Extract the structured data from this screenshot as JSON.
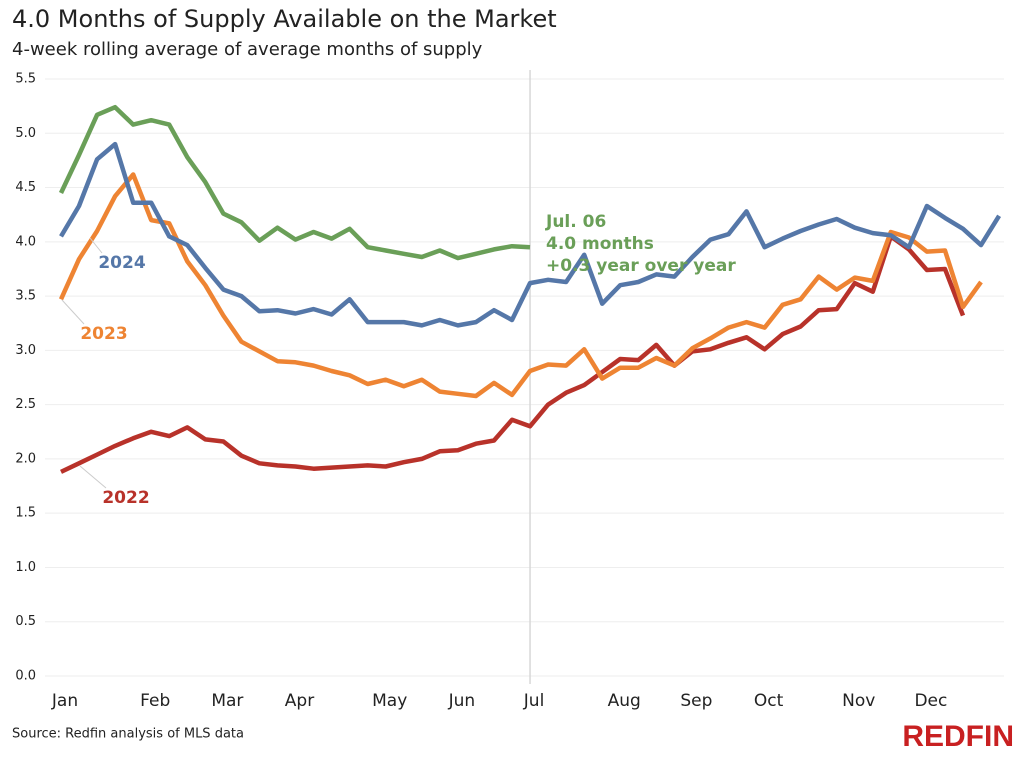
{
  "chart_data": {
    "type": "line",
    "title": "4.0 Months of Supply Available on the Market",
    "subtitle": "4-week rolling average of average months of supply",
    "source": "Source: Redfin analysis of MLS data",
    "logo": "REDFIN",
    "annotation": [
      "Jul. 06",
      "4.0 months",
      "+0.3 year over year"
    ],
    "categories": [
      "Jan",
      null,
      null,
      null,
      null,
      "Feb",
      null,
      null,
      null,
      "Mar",
      null,
      null,
      null,
      "Apr",
      null,
      null,
      null,
      null,
      "May",
      null,
      null,
      null,
      "Jun",
      null,
      null,
      null,
      "Jul",
      null,
      null,
      null,
      null,
      "Aug",
      null,
      null,
      null,
      "Sep",
      null,
      null,
      null,
      "Oct",
      null,
      null,
      null,
      null,
      "Nov",
      null,
      null,
      null,
      "Dec",
      null,
      null,
      null,
      null
    ],
    "series": [
      {
        "name": "2022",
        "color": "#b8322a",
        "values": [
          1.88,
          1.96,
          2.04,
          2.12,
          2.19,
          2.25,
          2.21,
          2.29,
          2.18,
          2.16,
          2.03,
          1.96,
          1.94,
          1.93,
          1.91,
          1.92,
          1.93,
          1.94,
          1.93,
          1.97,
          2.0,
          2.07,
          2.08,
          2.14,
          2.17,
          2.36,
          2.3,
          2.5,
          2.61,
          2.68,
          2.8,
          2.92,
          2.91,
          3.05,
          2.86,
          2.99,
          3.01,
          3.07,
          3.12,
          3.01,
          3.15,
          3.22,
          3.37,
          3.38,
          3.62,
          3.54,
          4.05,
          3.93,
          3.74,
          3.75,
          3.32,
          null,
          null
        ]
      },
      {
        "name": "2023",
        "color": "#ee8433",
        "values": [
          3.47,
          3.84,
          4.1,
          4.42,
          4.62,
          4.2,
          4.17,
          3.82,
          3.6,
          3.32,
          3.08,
          2.99,
          2.9,
          2.89,
          2.86,
          2.81,
          2.77,
          2.69,
          2.73,
          2.67,
          2.73,
          2.62,
          2.6,
          2.58,
          2.7,
          2.59,
          2.81,
          2.87,
          2.86,
          3.01,
          2.74,
          2.84,
          2.84,
          2.93,
          2.86,
          3.02,
          3.11,
          3.21,
          3.26,
          3.21,
          3.42,
          3.47,
          3.68,
          3.56,
          3.67,
          3.64,
          4.09,
          4.04,
          3.91,
          3.92,
          3.4,
          3.63,
          null
        ]
      },
      {
        "name": "2024",
        "color": "#5577a8",
        "values": [
          4.05,
          4.33,
          4.76,
          4.9,
          4.36,
          4.36,
          4.05,
          3.97,
          3.76,
          3.56,
          3.5,
          3.36,
          3.37,
          3.34,
          3.38,
          3.33,
          3.47,
          3.26,
          3.26,
          3.26,
          3.23,
          3.28,
          3.23,
          3.26,
          3.37,
          3.28,
          3.62,
          3.65,
          3.63,
          3.88,
          3.43,
          3.6,
          3.63,
          3.7,
          3.68,
          3.86,
          4.02,
          4.07,
          4.28,
          3.95,
          4.03,
          4.1,
          4.16,
          4.21,
          4.13,
          4.08,
          4.06,
          3.95,
          4.33,
          4.22,
          4.12,
          3.97,
          4.24
        ]
      },
      {
        "color": "#6a9f58",
        "values": [
          4.45,
          4.8,
          5.17,
          5.24,
          5.08,
          5.12,
          5.08,
          4.78,
          4.55,
          4.26,
          4.18,
          4.01,
          4.13,
          4.02,
          4.09,
          4.03,
          4.12,
          3.95,
          3.92,
          3.89,
          3.86,
          3.92,
          3.85,
          3.89,
          3.93,
          3.96,
          3.95,
          null,
          null,
          null,
          null,
          null,
          null,
          null,
          null,
          null,
          null,
          null,
          null,
          null,
          null,
          null,
          null,
          null,
          null,
          null,
          null,
          null,
          null,
          null,
          null,
          null,
          null
        ]
      }
    ],
    "ylim": [
      0,
      5.5
    ],
    "yticks": [
      {
        "value": 0,
        "label": "0.0"
      },
      0.5,
      {
        "value": 1,
        "label": "1.0"
      },
      1.5,
      {
        "value": 2,
        "label": "2.0"
      },
      2.5,
      {
        "value": 3,
        "label": "3.0"
      },
      3.5,
      {
        "value": 4,
        "label": "4.0"
      },
      4.5,
      {
        "value": 5,
        "label": "5.0"
      },
      5.5
    ],
    "grid": true
  }
}
